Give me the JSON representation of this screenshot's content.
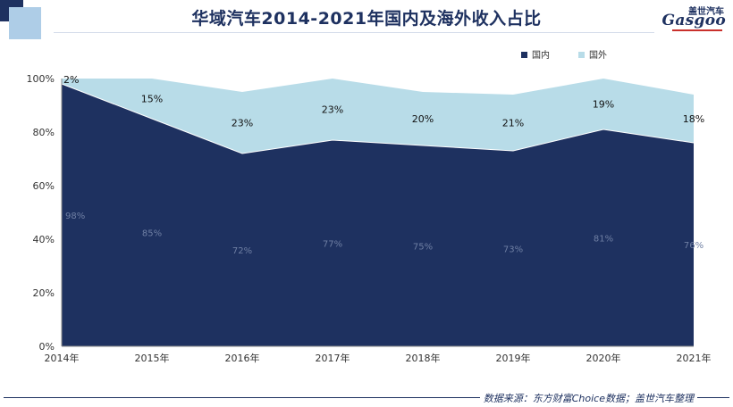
{
  "title": "华域汽车2014-2021年国内及海外收入占比",
  "logo": {
    "cn": "盖世汽车",
    "en": "Gasgoo"
  },
  "source": "数据来源：东方财富Choice数据；盖世汽车整理",
  "chart_data": {
    "type": "area",
    "stacked": true,
    "categories": [
      "2014年",
      "2015年",
      "2016年",
      "2017年",
      "2018年",
      "2019年",
      "2020年",
      "2021年"
    ],
    "series": [
      {
        "name": "国内",
        "values": [
          98,
          85,
          72,
          77,
          75,
          73,
          81,
          76
        ],
        "labels": [
          "98%",
          "85%",
          "72%",
          "77%",
          "75%",
          "73%",
          "81%",
          "76%"
        ],
        "color": "#1e3160"
      },
      {
        "name": "国外",
        "values": [
          2,
          15,
          23,
          23,
          20,
          21,
          19,
          18
        ],
        "labels": [
          "2%",
          "15%",
          "23%",
          "23%",
          "20%",
          "21%",
          "19%",
          "18%"
        ],
        "color": "#b8dce8"
      }
    ],
    "y_ticks": [
      "0%",
      "20%",
      "40%",
      "60%",
      "80%",
      "100%"
    ],
    "ylim": [
      0,
      100
    ],
    "grid": false,
    "legend_position": "top-right"
  }
}
